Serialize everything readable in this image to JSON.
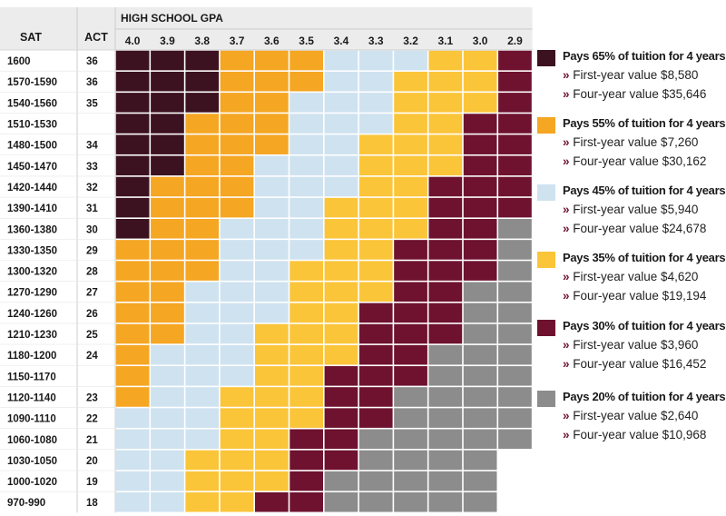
{
  "chart_data": {
    "type": "heatmap",
    "title": "HIGH SCHOOL GPA",
    "row_header_sat": "SAT",
    "row_header_act": "ACT",
    "gpa_columns": [
      "4.0",
      "3.9",
      "3.8",
      "3.7",
      "3.6",
      "3.5",
      "3.4",
      "3.3",
      "3.2",
      "3.1",
      "3.0",
      "2.9"
    ],
    "rows": [
      {
        "sat": "1600",
        "act": "36",
        "tiers": [
          65,
          65,
          65,
          55,
          55,
          55,
          45,
          45,
          45,
          35,
          35,
          30
        ]
      },
      {
        "sat": "1570-1590",
        "act": "36",
        "tiers": [
          65,
          65,
          65,
          55,
          55,
          55,
          45,
          45,
          35,
          35,
          35,
          30
        ]
      },
      {
        "sat": "1540-1560",
        "act": "35",
        "tiers": [
          65,
          65,
          65,
          55,
          55,
          45,
          45,
          45,
          35,
          35,
          35,
          30
        ]
      },
      {
        "sat": "1510-1530",
        "act": "",
        "tiers": [
          65,
          65,
          55,
          55,
          55,
          45,
          45,
          45,
          35,
          35,
          30,
          30
        ]
      },
      {
        "sat": "1480-1500",
        "act": "34",
        "tiers": [
          65,
          65,
          55,
          55,
          55,
          45,
          45,
          35,
          35,
          35,
          30,
          30
        ]
      },
      {
        "sat": "1450-1470",
        "act": "33",
        "tiers": [
          65,
          65,
          55,
          55,
          45,
          45,
          45,
          35,
          35,
          35,
          30,
          30
        ]
      },
      {
        "sat": "1420-1440",
        "act": "32",
        "tiers": [
          65,
          55,
          55,
          55,
          45,
          45,
          45,
          35,
          35,
          30,
          30,
          30
        ]
      },
      {
        "sat": "1390-1410",
        "act": "31",
        "tiers": [
          65,
          55,
          55,
          55,
          45,
          45,
          35,
          35,
          35,
          30,
          30,
          30
        ]
      },
      {
        "sat": "1360-1380",
        "act": "30",
        "tiers": [
          65,
          55,
          55,
          45,
          45,
          45,
          35,
          35,
          35,
          30,
          30,
          20
        ]
      },
      {
        "sat": "1330-1350",
        "act": "29",
        "tiers": [
          55,
          55,
          55,
          45,
          45,
          45,
          35,
          35,
          30,
          30,
          30,
          20
        ]
      },
      {
        "sat": "1300-1320",
        "act": "28",
        "tiers": [
          55,
          55,
          55,
          45,
          45,
          35,
          35,
          35,
          30,
          30,
          30,
          20
        ]
      },
      {
        "sat": "1270-1290",
        "act": "27",
        "tiers": [
          55,
          55,
          45,
          45,
          45,
          35,
          35,
          35,
          30,
          30,
          20,
          20
        ]
      },
      {
        "sat": "1240-1260",
        "act": "26",
        "tiers": [
          55,
          55,
          45,
          45,
          45,
          35,
          35,
          30,
          30,
          30,
          20,
          20
        ]
      },
      {
        "sat": "1210-1230",
        "act": "25",
        "tiers": [
          55,
          55,
          45,
          45,
          35,
          35,
          35,
          30,
          30,
          30,
          20,
          20
        ]
      },
      {
        "sat": "1180-1200",
        "act": "24",
        "tiers": [
          55,
          45,
          45,
          45,
          35,
          35,
          35,
          30,
          30,
          20,
          20,
          20
        ]
      },
      {
        "sat": "1150-1170",
        "act": "",
        "tiers": [
          55,
          45,
          45,
          45,
          35,
          35,
          30,
          30,
          30,
          20,
          20,
          20
        ]
      },
      {
        "sat": "1120-1140",
        "act": "23",
        "tiers": [
          55,
          45,
          45,
          35,
          35,
          35,
          30,
          30,
          20,
          20,
          20,
          20
        ]
      },
      {
        "sat": "1090-1110",
        "act": "22",
        "tiers": [
          45,
          45,
          45,
          35,
          35,
          35,
          30,
          30,
          20,
          20,
          20,
          20
        ]
      },
      {
        "sat": "1060-1080",
        "act": "21",
        "tiers": [
          45,
          45,
          45,
          35,
          35,
          30,
          30,
          20,
          20,
          20,
          20,
          20
        ]
      },
      {
        "sat": "1030-1050",
        "act": "20",
        "tiers": [
          45,
          45,
          35,
          35,
          35,
          30,
          30,
          20,
          20,
          20,
          20,
          null
        ]
      },
      {
        "sat": "1000-1020",
        "act": "19",
        "tiers": [
          45,
          45,
          35,
          35,
          35,
          30,
          20,
          20,
          20,
          20,
          20,
          null
        ]
      },
      {
        "sat": "970-990",
        "act": "18",
        "tiers": [
          45,
          45,
          35,
          35,
          30,
          30,
          20,
          20,
          20,
          20,
          20,
          null
        ]
      }
    ],
    "legend": [
      {
        "tier": 65,
        "color": "#3d1220",
        "title": "Pays 65% of tuition for 4 years",
        "first_year": "First-year value $8,580",
        "four_year": "Four-year value $35,646"
      },
      {
        "tier": 55,
        "color": "#f5a623",
        "title": "Pays 55% of tuition for 4 years",
        "first_year": "First-year value $7,260",
        "four_year": "Four-year value $30,162"
      },
      {
        "tier": 45,
        "color": "#cfe2f0",
        "title": "Pays 45% of tuition for 4 years",
        "first_year": "First-year value $5,940",
        "four_year": "Four-year value $24,678"
      },
      {
        "tier": 35,
        "color": "#fbc53a",
        "title": "Pays 35% of tuition for 4 years",
        "first_year": "First-year value $4,620",
        "four_year": "Four-year value $19,194"
      },
      {
        "tier": 30,
        "color": "#6e1230",
        "title": "Pays 30% of tuition for 4 years",
        "first_year": "First-year value $3,960",
        "four_year": "Four-year value $16,452"
      },
      {
        "tier": 20,
        "color": "#8c8c8c",
        "title": "Pays 20% of tuition for 4 years",
        "first_year": "First-year value $2,640",
        "four_year": "Four-year value $10,968"
      }
    ],
    "legend_bullet": "»"
  },
  "colors": {
    "header_bg": "#ececec",
    "grid_line": "#ffffff",
    "border": "#cccccc",
    "text": "#1a1a1a"
  }
}
